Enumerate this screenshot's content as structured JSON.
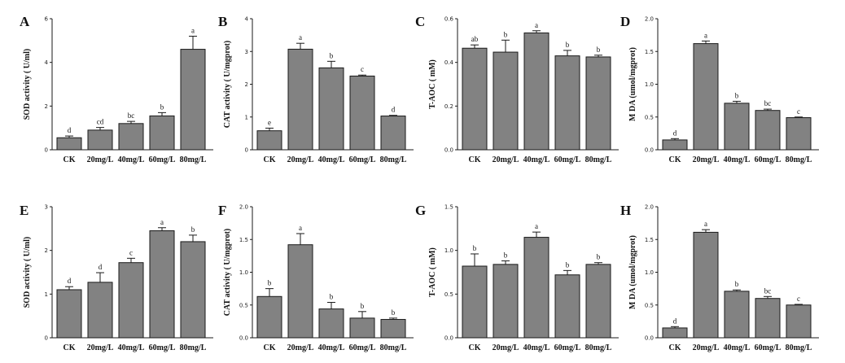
{
  "chart_data": [
    {
      "panel": "A",
      "type": "bar",
      "ylabel": "SOD activity ( U/ml)",
      "categories": [
        "CK",
        "20mg/L",
        "40mg/L",
        "60mg/L",
        "80mg/L"
      ],
      "values": [
        0.55,
        0.9,
        1.2,
        1.55,
        4.6
      ],
      "errors": [
        0.08,
        0.12,
        0.1,
        0.15,
        0.6
      ],
      "significance": [
        "d",
        "cd",
        "bc",
        "b",
        "a"
      ],
      "ylim": [
        0,
        6
      ],
      "yticks": [
        "0",
        "2",
        "4",
        "6"
      ]
    },
    {
      "panel": "B",
      "type": "bar",
      "ylabel": "CAT activity ( U/mgprot)",
      "categories": [
        "CK",
        "20mg/L",
        "40mg/L",
        "60mg/L",
        "80mg/L"
      ],
      "values": [
        0.58,
        3.07,
        2.5,
        2.25,
        1.03
      ],
      "errors": [
        0.08,
        0.18,
        0.2,
        0.03,
        0.02
      ],
      "significance": [
        "e",
        "a",
        "b",
        "c",
        "d"
      ],
      "ylim": [
        0,
        4
      ],
      "yticks": [
        "0",
        "1",
        "2",
        "3",
        "4"
      ]
    },
    {
      "panel": "C",
      "type": "bar",
      "ylabel": "T-AOC ( mM)",
      "categories": [
        "CK",
        "20mg/L",
        "40mg/L",
        "60mg/L",
        "80mg/L"
      ],
      "values": [
        0.465,
        0.447,
        0.535,
        0.43,
        0.425
      ],
      "errors": [
        0.015,
        0.055,
        0.01,
        0.025,
        0.008
      ],
      "significance": [
        "ab",
        "b",
        "a",
        "b",
        "b"
      ],
      "ylim": [
        0,
        0.6
      ],
      "yticks": [
        "0.0",
        "0.2",
        "0.4",
        "0.6"
      ]
    },
    {
      "panel": "D",
      "type": "bar",
      "ylabel": "M DA (umol/mgprot)",
      "categories": [
        "CK",
        "20mg/L",
        "40mg/L",
        "60mg/L",
        "80mg/L"
      ],
      "values": [
        0.15,
        1.62,
        0.71,
        0.6,
        0.49
      ],
      "errors": [
        0.02,
        0.04,
        0.03,
        0.02,
        0.01
      ],
      "significance": [
        "d",
        "a",
        "b",
        "bc",
        "c"
      ],
      "ylim": [
        0,
        2.0
      ],
      "yticks": [
        "0.0",
        "0.5",
        "1.0",
        "1.5",
        "2.0"
      ]
    },
    {
      "panel": "E",
      "type": "bar",
      "ylabel": "SOD activity ( U/ml)",
      "categories": [
        "CK",
        "20mg/L",
        "40mg/L",
        "60mg/L",
        "80mg/L"
      ],
      "values": [
        1.1,
        1.27,
        1.72,
        2.45,
        2.2
      ],
      "errors": [
        0.07,
        0.22,
        0.1,
        0.07,
        0.15
      ],
      "significance": [
        "d",
        "d",
        "c",
        "a",
        "b"
      ],
      "ylim": [
        0,
        3
      ],
      "yticks": [
        "0",
        "1",
        "2",
        "3"
      ]
    },
    {
      "panel": "F",
      "type": "bar",
      "ylabel": "CAT activity ( U/mgprot)",
      "categories": [
        "CK",
        "20mg/L",
        "40mg/L",
        "60mg/L",
        "80mg/L"
      ],
      "values": [
        0.63,
        1.42,
        0.44,
        0.3,
        0.28
      ],
      "errors": [
        0.12,
        0.17,
        0.1,
        0.1,
        0.02
      ],
      "significance": [
        "b",
        "a",
        "b",
        "b",
        "b"
      ],
      "ylim": [
        0,
        2.0
      ],
      "yticks": [
        "0.0",
        "0.5",
        "1.0",
        "1.5",
        "2.0"
      ]
    },
    {
      "panel": "G",
      "type": "bar",
      "ylabel": "T-AOC ( mM)",
      "categories": [
        "CK",
        "20mg/L",
        "40mg/L",
        "60mg/L",
        "80mg/L"
      ],
      "values": [
        0.82,
        0.84,
        1.15,
        0.72,
        0.84
      ],
      "errors": [
        0.14,
        0.04,
        0.06,
        0.05,
        0.02
      ],
      "significance": [
        "b",
        "b",
        "a",
        "b",
        "b"
      ],
      "ylim": [
        0,
        1.5
      ],
      "yticks": [
        "0.0",
        "0.5",
        "1.0",
        "1.5"
      ]
    },
    {
      "panel": "H",
      "type": "bar",
      "ylabel": "M DA (umol/mgprot)",
      "categories": [
        "CK",
        "20mg/L",
        "40mg/L",
        "60mg/L",
        "80mg/L"
      ],
      "values": [
        0.15,
        1.61,
        0.71,
        0.6,
        0.5
      ],
      "errors": [
        0.02,
        0.04,
        0.02,
        0.03,
        0.01
      ],
      "significance": [
        "d",
        "a",
        "b",
        "bc",
        "c"
      ],
      "ylim": [
        0,
        2.0
      ],
      "yticks": [
        "0.0",
        "0.5",
        "1.0",
        "1.5",
        "2.0"
      ]
    }
  ]
}
